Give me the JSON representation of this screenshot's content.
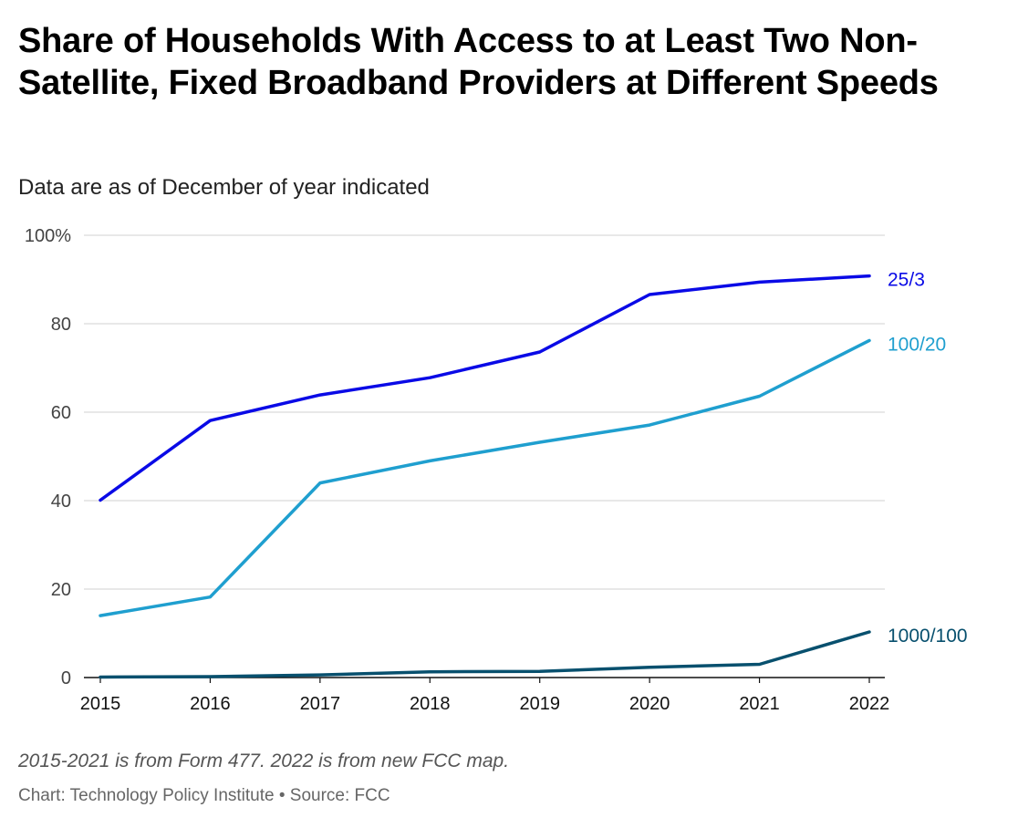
{
  "title": "Share of Households With Access to at Least Two Non-Satellite, Fixed Broadband Providers at Different Speeds",
  "subtitle": "Data are as of December of year indicated",
  "note": "2015-2021 is from Form 477. 2022 is from new FCC map.",
  "source": "Chart: Technology Policy Institute • Source: FCC",
  "chart_data": {
    "type": "line",
    "x": [
      2015,
      2016,
      2017,
      2018,
      2019,
      2020,
      2021,
      2022
    ],
    "x_tick_labels": [
      "2015",
      "2016",
      "2017",
      "2018",
      "2019",
      "2020",
      "2021",
      "2022"
    ],
    "ylim": [
      0,
      100
    ],
    "y_ticks": [
      0,
      20,
      40,
      60,
      80,
      100
    ],
    "y_tick_labels": [
      "0",
      "20",
      "40",
      "60",
      "80",
      "100%"
    ],
    "grid": true,
    "legend": "direct labels at line ends",
    "series": [
      {
        "name": "25/3",
        "color": "#0a0ae6",
        "values": [
          40.1,
          58.1,
          63.9,
          67.8,
          73.6,
          86.6,
          89.4,
          90.8
        ]
      },
      {
        "name": "100/20",
        "color": "#1f9fcf",
        "values": [
          14.0,
          18.2,
          44.0,
          49.0,
          53.2,
          57.1,
          63.6,
          76.2
        ]
      },
      {
        "name": "1000/100",
        "color": "#08506e",
        "values": [
          0.1,
          0.2,
          0.6,
          1.3,
          1.4,
          2.3,
          3.0,
          10.3
        ]
      }
    ]
  }
}
